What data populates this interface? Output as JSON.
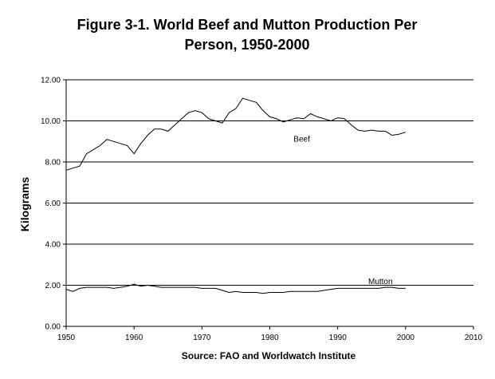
{
  "chart_data": {
    "type": "line",
    "title_lines": [
      "Figure 3-1. World Beef and Mutton Production Per",
      "Person, 1950-2000"
    ],
    "ylabel": "Kilograms",
    "source": "Source: FAO and Worldwatch Institute",
    "xlim": [
      1950,
      2010
    ],
    "ylim": [
      0,
      12
    ],
    "x_ticks": [
      1950,
      1960,
      1970,
      1980,
      1990,
      2000,
      2010
    ],
    "y_ticks": [
      0,
      2,
      4,
      6,
      8,
      10,
      12
    ],
    "y_tick_labels": [
      "0.00",
      "2.00",
      "4.00",
      "6.00",
      "8.00",
      "10.00",
      "12.00"
    ],
    "grid": "horizontal",
    "line_color": "#000000",
    "series": [
      {
        "name": "Beef",
        "x": [
          1950,
          1951,
          1952,
          1953,
          1954,
          1955,
          1956,
          1957,
          1958,
          1959,
          1960,
          1961,
          1962,
          1963,
          1964,
          1965,
          1966,
          1967,
          1968,
          1969,
          1970,
          1971,
          1972,
          1973,
          1974,
          1975,
          1976,
          1977,
          1978,
          1979,
          1980,
          1981,
          1982,
          1983,
          1984,
          1985,
          1986,
          1987,
          1988,
          1989,
          1990,
          1991,
          1992,
          1993,
          1994,
          1995,
          1996,
          1997,
          1998,
          1999,
          2000
        ],
        "values": [
          7.6,
          7.7,
          7.8,
          8.4,
          8.6,
          8.8,
          9.1,
          9.0,
          8.9,
          8.8,
          8.4,
          8.9,
          9.3,
          9.6,
          9.6,
          9.5,
          9.8,
          10.1,
          10.4,
          10.5,
          10.4,
          10.1,
          10.0,
          9.9,
          10.4,
          10.6,
          11.1,
          11.0,
          10.9,
          10.5,
          10.2,
          10.1,
          9.95,
          10.05,
          10.15,
          10.1,
          10.35,
          10.2,
          10.1,
          10.0,
          10.15,
          10.1,
          9.8,
          9.55,
          9.5,
          9.55,
          9.5,
          9.5,
          9.3,
          9.35,
          9.45
        ]
      },
      {
        "name": "Mutton",
        "x": [
          1950,
          1951,
          1952,
          1953,
          1954,
          1955,
          1956,
          1957,
          1958,
          1959,
          1960,
          1961,
          1962,
          1963,
          1964,
          1965,
          1966,
          1967,
          1968,
          1969,
          1970,
          1971,
          1972,
          1973,
          1974,
          1975,
          1976,
          1977,
          1978,
          1979,
          1980,
          1981,
          1982,
          1983,
          1984,
          1985,
          1986,
          1987,
          1988,
          1989,
          1990,
          1991,
          1992,
          1993,
          1994,
          1995,
          1996,
          1997,
          1998,
          1999,
          2000
        ],
        "values": [
          1.8,
          1.7,
          1.85,
          1.9,
          1.9,
          1.9,
          1.9,
          1.85,
          1.9,
          1.95,
          2.05,
          1.95,
          2.0,
          1.95,
          1.9,
          1.9,
          1.9,
          1.9,
          1.9,
          1.9,
          1.85,
          1.85,
          1.85,
          1.75,
          1.65,
          1.7,
          1.65,
          1.65,
          1.65,
          1.6,
          1.65,
          1.65,
          1.65,
          1.7,
          1.7,
          1.7,
          1.7,
          1.7,
          1.75,
          1.8,
          1.85,
          1.85,
          1.85,
          1.85,
          1.85,
          1.85,
          1.85,
          1.9,
          1.9,
          1.85,
          1.85
        ]
      }
    ]
  }
}
